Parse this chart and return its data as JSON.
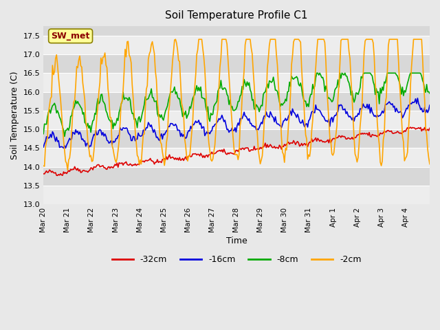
{
  "title": "Soil Temperature Profile C1",
  "xlabel": "Time",
  "ylabel": "Soil Temperature (C)",
  "ylim": [
    13.0,
    17.75
  ],
  "yticks": [
    13.0,
    13.5,
    14.0,
    14.5,
    15.0,
    15.5,
    16.0,
    16.5,
    17.0,
    17.5
  ],
  "annotation_label": "SW_met",
  "annotation_label_color": "#8B0000",
  "annotation_box_facecolor": "#FFFF99",
  "annotation_box_edgecolor": "#8B8000",
  "legend_labels": [
    "-32cm",
    "-16cm",
    "-8cm",
    "-2cm"
  ],
  "line_colors": [
    "#DD0000",
    "#0000DD",
    "#00AA00",
    "#FFA500"
  ],
  "bg_color": "#E8E8E8",
  "plot_bg_color": "#D8D8D8",
  "n_days": 16,
  "points_per_day": 24,
  "xtick_labels": [
    "Mar 20",
    "Mar 21",
    "Mar 22",
    "Mar 23",
    "Mar 24",
    "Mar 25",
    "Mar 26",
    "Mar 27",
    "Mar 28",
    "Mar 29",
    "Mar 30",
    "Mar 31",
    "Apr 1",
    "Apr 2",
    "Apr 3",
    "Apr 4"
  ]
}
